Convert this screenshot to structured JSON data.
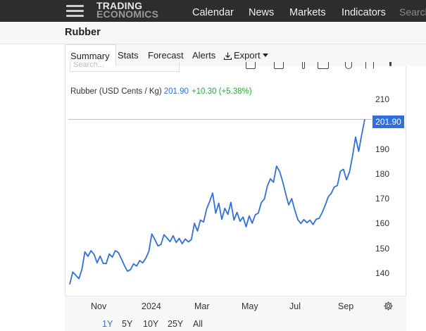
{
  "header": {
    "logo_line1": "TRADING",
    "logo_line2": "ECONOMICS",
    "nav": [
      "Calendar",
      "News",
      "Markets",
      "Indicators"
    ],
    "search_placeholder": "Search"
  },
  "page": {
    "title": "Rubber"
  },
  "tabs": {
    "summary": "Summary",
    "stats": "Stats",
    "forecast": "Forecast",
    "alerts": "Alerts",
    "export": "Export"
  },
  "chart_search_placeholder": "Search...",
  "legend": {
    "name": "Rubber (USD Cents / Kg)",
    "value": "201.90",
    "change": "+10.30 (+5.38%)"
  },
  "colors": {
    "line": "#2f6fe0",
    "positive": "#1fae3a",
    "nav_bg": "#2d2d2d"
  },
  "ranges": [
    "1Y",
    "5Y",
    "10Y",
    "25Y",
    "All"
  ],
  "active_range": "1Y",
  "chart_data": {
    "type": "line",
    "title": "",
    "xlabel": "",
    "ylabel": "",
    "ylim": [
      132,
      213
    ],
    "yticks": [
      140,
      150,
      160,
      170,
      180,
      190,
      210
    ],
    "xtick_labels": [
      "Nov",
      "2024",
      "Mar",
      "May",
      "Jul",
      "Sep"
    ],
    "last_value_label": "201.90",
    "last_value": 201.9,
    "grid": false,
    "series": [
      {
        "values": [
          135.5,
          140.5,
          139.2,
          137.8,
          141.5,
          148.6,
          146.8,
          149.1,
          147.6,
          144.2,
          146.9,
          144.0,
          143.9,
          147.8,
          146.5,
          149.1,
          148.3,
          145.8,
          143.0,
          140.8,
          141.5,
          143.8,
          142.9,
          145.1,
          144.2,
          146.0,
          148.7,
          155.8,
          153.6,
          151.0,
          151.6,
          155.5,
          154.2,
          152.7,
          155.1,
          152.4,
          154.0,
          151.9,
          153.8,
          152.6,
          153.6,
          160.1,
          157.0,
          161.4,
          160.6,
          165.8,
          168.8,
          172.3,
          164.2,
          168.2,
          161.7,
          166.1,
          163.7,
          168.5,
          161.4,
          164.5,
          160.9,
          162.6,
          158.7,
          163.1,
          160.1,
          163.5,
          164.2,
          168.4,
          169.9,
          175.2,
          178.0,
          176.6,
          183.1,
          181.0,
          176.9,
          172.0,
          167.5,
          170.0,
          165.4,
          161.6,
          160.0,
          161.6,
          160.3,
          161.4,
          159.6,
          161.7,
          162.1,
          164.4,
          167.3,
          170.7,
          172.2,
          174.7,
          175.3,
          181.0,
          181.8,
          177.6,
          180.8,
          187.2,
          194.8,
          189.0,
          195.8,
          201.9
        ]
      }
    ]
  }
}
